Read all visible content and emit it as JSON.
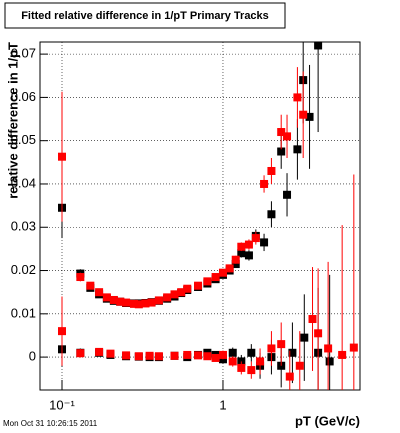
{
  "chart_data": {
    "type": "scatter",
    "title": "Fitted relative difference in 1/pT  Primary Tracks",
    "x_label": "pT (GeV/c)",
    "y_label": "relative difference in 1/pT",
    "timestamp": "Mon Oct 31 10:26:15 2011",
    "xlog": true,
    "grid": true,
    "xlim": [
      0.073,
      7.1
    ],
    "ylim": [
      -0.0076,
      0.0728
    ],
    "xticks": [
      {
        "value": 0.1,
        "label": "10⁻¹"
      },
      1
    ],
    "yticks": [
      0,
      0.01,
      0.02,
      0.03,
      0.04,
      0.05,
      0.06,
      0.07
    ],
    "series": [
      {
        "color": "#000000",
        "x": [
          0.1,
          0.13,
          0.15,
          0.17,
          0.19,
          0.21,
          0.23,
          0.25,
          0.28,
          0.3,
          0.33,
          0.36,
          0.4,
          0.45,
          0.5,
          0.55,
          0.6,
          0.7,
          0.8,
          0.9,
          1.0,
          1.1,
          1.2,
          1.3,
          1.45,
          1.6,
          1.8,
          2.0,
          2.3,
          2.5,
          2.9,
          3.15,
          3.45,
          3.9
        ],
        "values": [
          0.0345,
          0.0193,
          0.016,
          0.0145,
          0.0135,
          0.013,
          0.0128,
          0.0125,
          0.0124,
          0.0124,
          0.0125,
          0.0127,
          0.013,
          0.0135,
          0.014,
          0.0148,
          0.0155,
          0.0162,
          0.017,
          0.018,
          0.019,
          0.02,
          0.0215,
          0.024,
          0.0235,
          0.028,
          0.0265,
          0.033,
          0.0475,
          0.0375,
          0.048,
          0.064,
          0.0555,
          0.072
        ],
        "errors": [
          0.007,
          0.001,
          0.0006,
          0.0005,
          0.0004,
          0.0004,
          0.0004,
          0.0004,
          0.0004,
          0.0004,
          0.0004,
          0.0004,
          0.0004,
          0.0004,
          0.0004,
          0.0005,
          0.0005,
          0.0005,
          0.0006,
          0.0006,
          0.0007,
          0.0008,
          0.0009,
          0.001,
          0.0012,
          0.0015,
          0.002,
          0.003,
          0.004,
          0.005,
          0.007,
          0.01,
          0.012,
          0.02
        ]
      },
      {
        "color": "#ff0000",
        "x": [
          0.1,
          0.13,
          0.15,
          0.17,
          0.19,
          0.21,
          0.23,
          0.25,
          0.28,
          0.3,
          0.33,
          0.36,
          0.4,
          0.45,
          0.5,
          0.55,
          0.6,
          0.7,
          0.8,
          0.9,
          1.0,
          1.1,
          1.2,
          1.3,
          1.45,
          1.6,
          1.8,
          2.0,
          2.3,
          2.5,
          2.9,
          3.15
        ],
        "values": [
          0.0463,
          0.0185,
          0.0165,
          0.015,
          0.0138,
          0.0132,
          0.0128,
          0.0126,
          0.0123,
          0.0122,
          0.0124,
          0.0126,
          0.0131,
          0.0138,
          0.0145,
          0.015,
          0.0158,
          0.0165,
          0.0175,
          0.0185,
          0.0195,
          0.0205,
          0.0225,
          0.0255,
          0.026,
          0.0275,
          0.04,
          0.043,
          0.052,
          0.051,
          0.06,
          0.056
        ],
        "errors": [
          0.015,
          0.001,
          0.0006,
          0.0005,
          0.0004,
          0.0004,
          0.0004,
          0.0004,
          0.0004,
          0.0004,
          0.0004,
          0.0004,
          0.0004,
          0.0004,
          0.0004,
          0.0005,
          0.0005,
          0.0005,
          0.0006,
          0.0006,
          0.0007,
          0.0008,
          0.0009,
          0.001,
          0.0012,
          0.0015,
          0.002,
          0.003,
          0.004,
          0.005,
          0.007,
          0.01
        ]
      },
      {
        "color": "#000000",
        "x": [
          0.1,
          0.13,
          0.17,
          0.2,
          0.25,
          0.3,
          0.35,
          0.4,
          0.5,
          0.6,
          0.7,
          0.8,
          0.9,
          1.0,
          1.15,
          1.3,
          1.5,
          1.7,
          2.0,
          2.3,
          2.7,
          3.2,
          3.9,
          4.6
        ],
        "values": [
          0.0018,
          0.001,
          0.001,
          0.0005,
          0.0002,
          0.0001,
          0.0,
          0.0,
          0.0003,
          0.0,
          0.0005,
          0.001,
          0.0005,
          -0.0005,
          0.001,
          -0.001,
          0.001,
          -0.002,
          0.0,
          -0.002,
          0.001,
          0.0045,
          0.001,
          -0.001
        ],
        "errors": [
          0.004,
          0.001,
          0.0006,
          0.0005,
          0.0005,
          0.0005,
          0.0005,
          0.0005,
          0.0005,
          0.0006,
          0.0006,
          0.0007,
          0.0008,
          0.001,
          0.0012,
          0.0015,
          0.002,
          0.003,
          0.004,
          0.005,
          0.007,
          0.01,
          0.015,
          0.02
        ]
      },
      {
        "color": "#ff0000",
        "x": [
          0.1,
          0.13,
          0.17,
          0.2,
          0.25,
          0.3,
          0.35,
          0.4,
          0.5,
          0.6,
          0.7,
          0.8,
          0.9,
          1.0,
          1.15,
          1.3,
          1.5,
          1.7,
          2.0,
          2.3,
          2.6,
          3.0,
          3.6,
          3.9,
          4.5,
          5.5,
          6.5
        ],
        "values": [
          0.006,
          0.0009,
          0.0012,
          0.0008,
          0.0004,
          0.0002,
          0.0003,
          0.0002,
          0.0003,
          0.0005,
          0.0004,
          0.0002,
          -0.0002,
          0.0005,
          -0.001,
          -0.0025,
          -0.003,
          -0.001,
          0.002,
          0.003,
          -0.0045,
          -0.002,
          0.0088,
          0.0055,
          0.002,
          0.0005,
          0.0022
        ],
        "errors": [
          0.008,
          0.001,
          0.0006,
          0.0005,
          0.0005,
          0.0005,
          0.0005,
          0.0005,
          0.0005,
          0.0006,
          0.0006,
          0.0007,
          0.0008,
          0.001,
          0.0012,
          0.0015,
          0.002,
          0.003,
          0.004,
          0.005,
          0.006,
          0.008,
          0.012,
          0.015,
          0.02,
          0.03,
          0.04
        ]
      }
    ]
  }
}
